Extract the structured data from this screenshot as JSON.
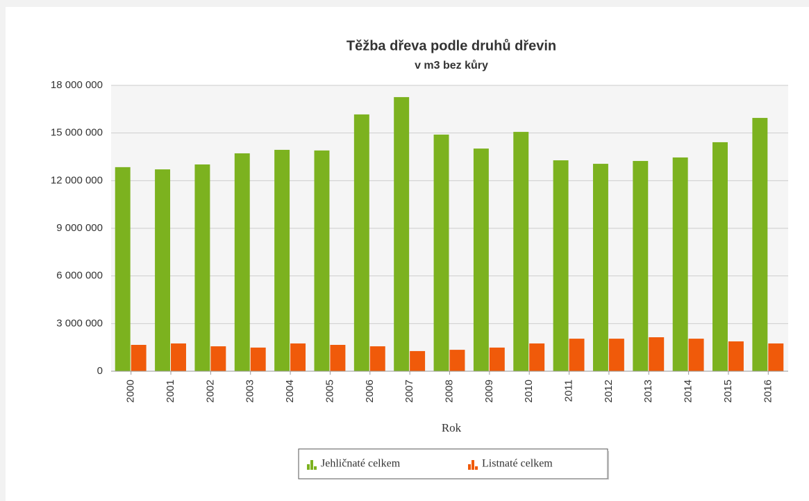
{
  "chart_data": {
    "type": "bar",
    "title": "Těžba dřeva podle druhů dřevin",
    "subtitle": "v m3 bez kůry",
    "x_label": "Rok",
    "categories": [
      "2000",
      "2001",
      "2002",
      "2003",
      "2004",
      "2005",
      "2006",
      "2007",
      "2008",
      "2009",
      "2010",
      "2011",
      "2012",
      "2013",
      "2014",
      "2015",
      "2016"
    ],
    "series": [
      {
        "name": "Jehličnaté celkem",
        "color": "#7cb21f",
        "values": [
          12850000,
          12710000,
          13020000,
          13720000,
          13940000,
          13900000,
          16170000,
          17260000,
          14900000,
          14020000,
          15070000,
          13280000,
          13060000,
          13240000,
          13460000,
          14420000,
          15950000
        ]
      },
      {
        "name": "Listnaté celkem",
        "color": "#f05a0a",
        "values": [
          1660000,
          1750000,
          1570000,
          1490000,
          1750000,
          1660000,
          1570000,
          1270000,
          1350000,
          1490000,
          1750000,
          2050000,
          2050000,
          2140000,
          2050000,
          1880000,
          1750000
        ]
      }
    ],
    "ylim": [
      0,
      18000000
    ],
    "yticks": [
      0,
      {
        "value": 3000000,
        "label": "3 000 000"
      },
      {
        "value": 6000000,
        "label": "6 000 000"
      },
      {
        "value": 9000000,
        "label": "9 000 000"
      },
      {
        "value": 12000000,
        "label": "12 000 000"
      },
      {
        "value": 15000000,
        "label": "15 000 000"
      },
      {
        "value": 18000000,
        "label": "18 000 000"
      }
    ],
    "grid": true
  }
}
